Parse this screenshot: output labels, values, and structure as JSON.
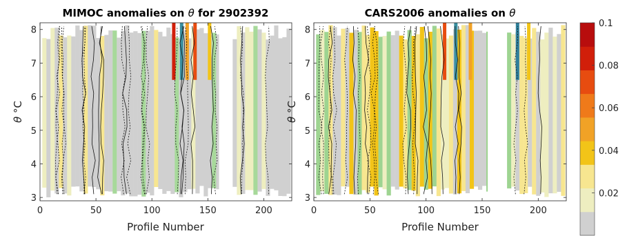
{
  "chart_data": [
    {
      "type": "heatmap",
      "title_main": "MIMOC anomalies on ",
      "title_sym": "θ",
      "title_tail": "  for 2902392",
      "xlabel": "Profile Number",
      "ylabel_sym": "θ",
      "ylabel_unit": " °C",
      "xlim": [
        0,
        225
      ],
      "ylim": [
        2.9,
        8.2
      ],
      "xticks": [
        0,
        50,
        100,
        150,
        200
      ],
      "yticks": [
        3,
        4,
        5,
        6,
        7,
        8
      ],
      "gaps": [
        [
          160,
          172
        ]
      ]
    },
    {
      "type": "heatmap",
      "title_main": "CARS2006 anomalies on ",
      "title_sym": "θ",
      "title_tail": "",
      "xlabel": "Profile Number",
      "ylabel_sym": "θ",
      "ylabel_unit": " °C",
      "xlim": [
        0,
        225
      ],
      "ylim": [
        2.9,
        8.2
      ],
      "xticks": [
        0,
        50,
        100,
        150,
        200
      ],
      "yticks": [
        3,
        4,
        5,
        6,
        7,
        8
      ],
      "gaps": [
        [
          155,
          172
        ]
      ]
    }
  ],
  "colorbar": {
    "range": [
      0,
      0.1
    ],
    "ticks": [
      0.02,
      0.04,
      0.06,
      0.08,
      0.1
    ],
    "tick_labels": [
      "0.02",
      "0.04",
      "0.06",
      "0.08",
      "0.1"
    ],
    "colors": [
      "#d0d0d0",
      "#eeeec0",
      "#f7e690",
      "#f2c418",
      "#f1a226",
      "#ef7a1a",
      "#e74c10",
      "#d11f0a",
      "#b80d0d"
    ]
  }
}
